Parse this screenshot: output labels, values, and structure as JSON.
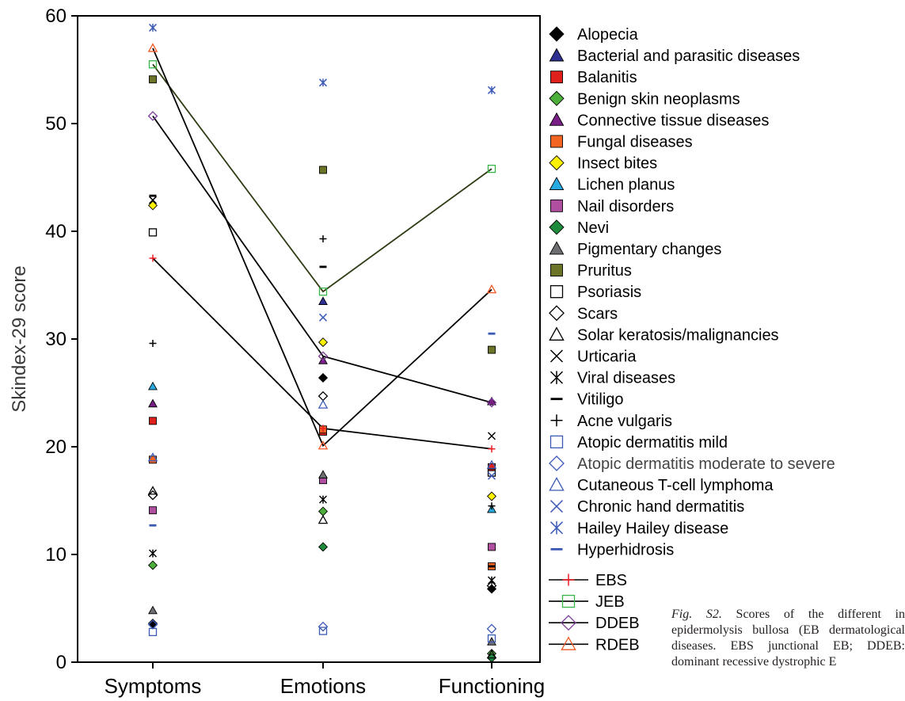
{
  "chart_data": {
    "type": "scatter",
    "ylabel": "Skindex-29 score",
    "xlabel": "",
    "ylim": [
      0,
      60
    ],
    "yticks": [
      0,
      10,
      20,
      30,
      40,
      50,
      60
    ],
    "categories": [
      "Symptoms",
      "Emotions",
      "Functioning"
    ],
    "legend_position": "right",
    "series": [
      {
        "name": "Alopecia",
        "marker": "diamond",
        "color": "#000000",
        "filled": true,
        "values": [
          3.6,
          26.4,
          6.8
        ]
      },
      {
        "name": "Bacterial and parasitic diseases",
        "marker": "triangle",
        "color": "#2e3192",
        "filled": true,
        "values": [
          null,
          33.5,
          null
        ]
      },
      {
        "name": "Balanitis",
        "marker": "square",
        "color": "#e0201b",
        "filled": true,
        "values": [
          22.4,
          21.4,
          18.1
        ]
      },
      {
        "name": "Benign skin neoplasms",
        "marker": "diamond",
        "color": "#4caf3a",
        "filled": true,
        "values": [
          9.0,
          14.0,
          0.8
        ]
      },
      {
        "name": "Connective tissue diseases",
        "marker": "triangle",
        "color": "#7a1f87",
        "filled": true,
        "values": [
          24.0,
          28.0,
          24.2
        ]
      },
      {
        "name": "Fungal diseases",
        "marker": "square",
        "color": "#f26522",
        "filled": true,
        "values": [
          18.8,
          21.6,
          8.9
        ]
      },
      {
        "name": "Insect bites",
        "marker": "diamond",
        "color": "#fff200",
        "filled": true,
        "values": [
          42.4,
          29.7,
          15.4
        ]
      },
      {
        "name": "Lichen planus",
        "marker": "triangle",
        "color": "#27aae1",
        "filled": true,
        "values": [
          25.6,
          null,
          14.2
        ]
      },
      {
        "name": "Nail disorders",
        "marker": "square",
        "color": "#b04fa0",
        "filled": true,
        "values": [
          14.1,
          16.9,
          10.7
        ]
      },
      {
        "name": "Nevi",
        "marker": "diamond",
        "color": "#1e8a3c",
        "filled": true,
        "values": [
          null,
          10.7,
          0.4
        ]
      },
      {
        "name": "Pigmentary changes",
        "marker": "triangle",
        "color": "#6d6e71",
        "filled": true,
        "values": [
          4.8,
          17.4,
          1.9
        ]
      },
      {
        "name": "Pruritus",
        "marker": "square",
        "color": "#6b7427",
        "filled": true,
        "values": [
          54.1,
          45.7,
          29.0
        ]
      },
      {
        "name": "Psoriasis",
        "marker": "square",
        "color": "#000000",
        "filled": false,
        "values": [
          39.9,
          null,
          17.6
        ]
      },
      {
        "name": "Scars",
        "marker": "diamond",
        "color": "#000000",
        "filled": false,
        "values": [
          15.5,
          24.7,
          7.1
        ]
      },
      {
        "name": "Solar keratosis/malignancies",
        "marker": "triangle",
        "color": "#000000",
        "filled": false,
        "values": [
          15.9,
          13.2,
          0.7
        ]
      },
      {
        "name": "Urticaria",
        "marker": "x",
        "color": "#000000",
        "filled": false,
        "values": [
          42.9,
          null,
          21.0
        ]
      },
      {
        "name": "Viral diseases",
        "marker": "asterisk",
        "color": "#000000",
        "filled": false,
        "values": [
          10.1,
          15.1,
          7.6
        ]
      },
      {
        "name": "Vitiligo",
        "marker": "dash",
        "color": "#000000",
        "filled": false,
        "values": [
          43.3,
          36.7,
          8.9
        ]
      },
      {
        "name": "Acne vulgaris",
        "marker": "plus",
        "color": "#000000",
        "filled": false,
        "values": [
          29.6,
          39.3,
          14.5
        ]
      },
      {
        "name": "Atopic dermatitis mild",
        "marker": "square",
        "color": "#3b5ab5",
        "filled": false,
        "values": [
          2.8,
          2.9,
          2.2
        ]
      },
      {
        "name": "Atopic dermatitis moderate to severe",
        "marker": "diamond",
        "color": "#3b5ab5",
        "filled": false,
        "values": [
          3.5,
          3.3,
          3.1
        ]
      },
      {
        "name": "Cutaneous T-cell lymphoma",
        "marker": "triangle",
        "color": "#3b5ab5",
        "filled": false,
        "values": [
          19.0,
          23.9,
          18.3
        ]
      },
      {
        "name": "Chronic hand dermatitis",
        "marker": "x",
        "color": "#3b5ab5",
        "filled": false,
        "values": [
          null,
          32.0,
          17.3
        ]
      },
      {
        "name": "Hailey Hailey disease",
        "marker": "asterisk",
        "color": "#3b5ab5",
        "filled": false,
        "values": [
          58.9,
          53.8,
          53.1
        ]
      },
      {
        "name": "Hyperhidrosis",
        "marker": "dash",
        "color": "#3b5ab5",
        "filled": false,
        "values": [
          12.7,
          null,
          30.5
        ]
      },
      {
        "name": "EBS",
        "marker": "plus",
        "color": "#ed1c24",
        "filled": false,
        "line": true,
        "values": [
          37.5,
          21.7,
          19.8
        ]
      },
      {
        "name": "JEB",
        "marker": "square",
        "color": "#39b54a",
        "filled": false,
        "line": true,
        "line_color": "#2f3d15",
        "values": [
          55.5,
          34.4,
          45.8
        ]
      },
      {
        "name": "DDEB",
        "marker": "diamond",
        "color": "#7e3f98",
        "filled": false,
        "line": true,
        "values": [
          50.7,
          28.4,
          24.1
        ]
      },
      {
        "name": "RDEB",
        "marker": "triangle",
        "color": "#f15a24",
        "filled": false,
        "line": true,
        "values": [
          57.0,
          20.1,
          34.6
        ]
      }
    ]
  },
  "caption": {
    "label": "Fig. S2.",
    "text": " Scores of the different in epidermolysis bullosa (EB dermatological diseases. EBS junctional EB; DDEB: dominant recessive dystrophic E"
  }
}
